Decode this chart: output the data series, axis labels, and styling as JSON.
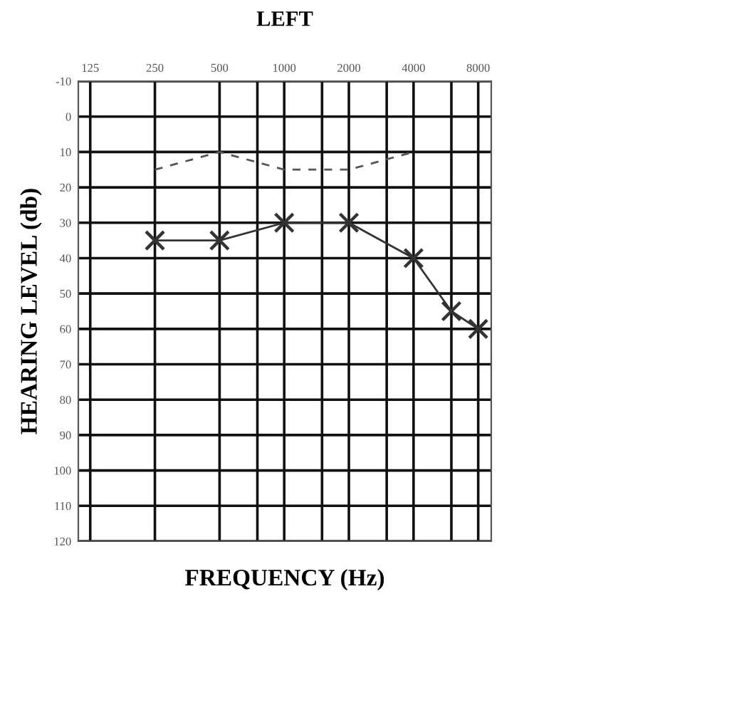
{
  "chart_data": {
    "type": "line",
    "title": "LEFT",
    "xlabel": "FREQUENCY (Hz)",
    "ylabel": "HEARING LEVEL (db)",
    "log": "x",
    "xlim": [
      110,
      9200
    ],
    "xticks": [
      125,
      250,
      500,
      {
        "value": 750,
        "label": null
      },
      1000,
      {
        "value": 1500,
        "label": null
      },
      2000,
      {
        "value": 3000,
        "label": null
      },
      4000,
      {
        "value": 6000,
        "label": null
      },
      8000
    ],
    "ylim": [
      120,
      -10
    ],
    "yticks": [
      -10,
      0,
      10,
      20,
      30,
      40,
      50,
      60,
      70,
      80,
      90,
      100,
      110,
      120
    ],
    "grid": true,
    "series": [
      {
        "color": "#333333",
        "marker": "cross",
        "line_style": "solid",
        "x": [
          250,
          500,
          1000,
          2000,
          4000,
          6000,
          8000
        ],
        "values": [
          35,
          35,
          30,
          30,
          40,
          55,
          60
        ]
      },
      {
        "color": "#555555",
        "marker": "none",
        "line_style": "dashed",
        "x": [
          250,
          500,
          1000,
          2000,
          4000
        ],
        "values": [
          15,
          10,
          15,
          15,
          10
        ]
      }
    ]
  }
}
